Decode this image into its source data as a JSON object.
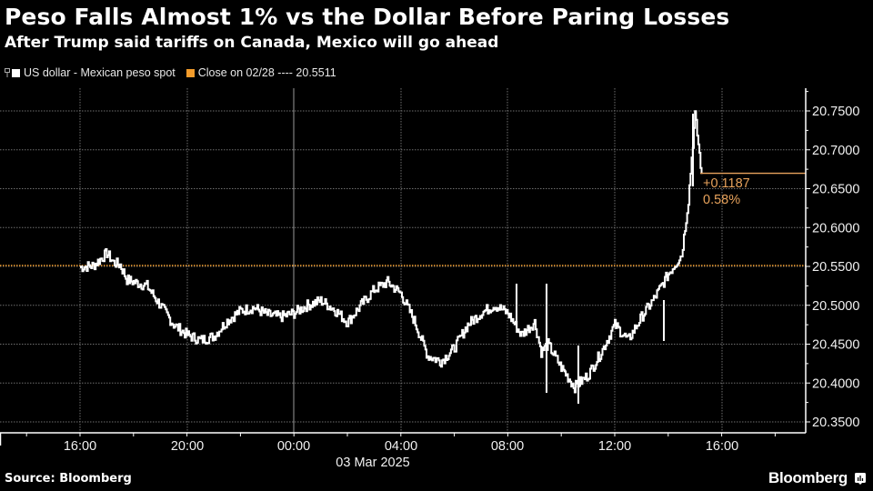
{
  "header": {
    "title": "Peso Falls Almost 1% vs the Dollar Before Paring Losses",
    "subtitle": "After Trump said tariffs on Canada, Mexico will go ahead"
  },
  "legend": {
    "items": [
      {
        "label": "US dollar - Mexican peso spot",
        "color": "#ffffff",
        "icon": "square"
      },
      {
        "label": "Close on 02/28 ---- 20.5511",
        "color": "#f39c2b",
        "icon": "square"
      }
    ]
  },
  "footer": {
    "source": "Source: Bloomberg",
    "brand": "Bloomberg"
  },
  "annotation": {
    "change": "+0.1187",
    "pct": "0.58%",
    "color": "#e8a35c"
  },
  "colors": {
    "background": "#000000",
    "series": "#ffffff",
    "close_line": "#f39c2b",
    "last_line": "#e8a35c",
    "grid": "#8a8a8a",
    "axis": "#ffffff"
  },
  "chart_data": {
    "type": "line",
    "title": "Peso Falls Almost 1% vs the Dollar Before Paring Losses",
    "subtitle": "After Trump said tariffs on Canada, Mexico will go ahead",
    "xlabel": "",
    "ylabel": "",
    "x_ticks": [
      "16:00",
      "20:00",
      "00:00",
      "04:00",
      "08:00",
      "12:00",
      "16:00"
    ],
    "x_date_label": "03 Mar 2025",
    "y_ticks": [
      "20.3500",
      "20.4000",
      "20.4500",
      "20.5000",
      "20.5500",
      "20.6000",
      "20.6500",
      "20.7000",
      "20.7500"
    ],
    "ylim": [
      20.335,
      20.775
    ],
    "grid": true,
    "legend_position": "top-left",
    "series": [
      {
        "name": "US dollar - Mexican peso spot",
        "x": [
          "16:00",
          "16:30",
          "17:00",
          "17:15",
          "17:30",
          "17:45",
          "18:00",
          "18:30",
          "19:00",
          "19:30",
          "20:00",
          "20:30",
          "21:00",
          "21:30",
          "22:00",
          "22:30",
          "23:00",
          "23:30",
          "00:00",
          "00:30",
          "01:00",
          "01:30",
          "02:00",
          "02:30",
          "03:00",
          "03:30",
          "04:00",
          "04:30",
          "05:00",
          "05:30",
          "06:00",
          "06:30",
          "07:00",
          "07:30",
          "08:00",
          "08:30",
          "09:00",
          "09:15",
          "09:30",
          "10:00",
          "10:30",
          "11:00",
          "11:30",
          "12:00",
          "12:30",
          "13:00",
          "13:30",
          "14:00",
          "14:30",
          "14:45",
          "15:00",
          "15:15"
        ],
        "values": [
          20.549,
          20.551,
          20.567,
          20.555,
          20.552,
          20.533,
          20.53,
          20.525,
          20.5,
          20.475,
          20.462,
          20.455,
          20.46,
          20.48,
          20.493,
          20.497,
          20.488,
          20.485,
          20.49,
          20.5,
          20.506,
          20.495,
          20.478,
          20.5,
          20.52,
          20.53,
          20.515,
          20.48,
          20.435,
          20.428,
          20.445,
          20.475,
          20.49,
          20.5,
          20.49,
          20.462,
          20.478,
          20.44,
          20.45,
          20.42,
          20.395,
          20.41,
          20.44,
          20.475,
          20.455,
          20.485,
          20.51,
          20.54,
          20.565,
          20.635,
          20.745,
          20.669
        ]
      },
      {
        "name": "Close on 02/28",
        "constant": 20.5511
      }
    ],
    "annotations": [
      {
        "text": "+0.1187",
        "y": 20.669
      },
      {
        "text": "0.58%",
        "y": 20.669
      }
    ],
    "last_value": 20.6698
  }
}
